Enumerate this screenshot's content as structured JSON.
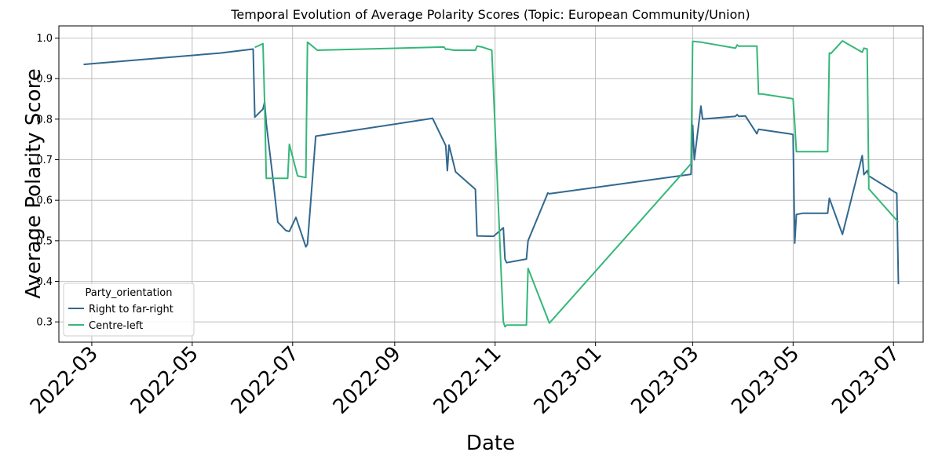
{
  "chart_data": {
    "type": "line",
    "title": "Temporal Evolution of Average Polarity Scores (Topic: European Community/Union)",
    "xlabel": "Date",
    "ylabel": "Average Polarity Score",
    "xlim": [
      "2022-02-09",
      "2023-07-19"
    ],
    "ylim": [
      0.25,
      1.03
    ],
    "xticks": [
      "2022-03-01",
      "2022-05-01",
      "2022-07-01",
      "2022-09-01",
      "2022-11-01",
      "2023-01-01",
      "2023-03-01",
      "2023-05-01",
      "2023-07-01"
    ],
    "xtick_labels": [
      "2022-03",
      "2022-05",
      "2022-07",
      "2022-09",
      "2022-11",
      "2023-01",
      "2023-03",
      "2023-05",
      "2023-07"
    ],
    "yticks": [
      0.3,
      0.4,
      0.5,
      0.6,
      0.7,
      0.8,
      0.9,
      1.0
    ],
    "ytick_labels": [
      "0.3",
      "0.4",
      "0.5",
      "0.6",
      "0.7",
      "0.8",
      "0.9",
      "1.0"
    ],
    "grid": true,
    "legend": {
      "title": "Party_orientation",
      "placement": "lower-left"
    },
    "series": [
      {
        "name": "Right to far-right",
        "color": "#31688e",
        "points": [
          [
            "2022-02-24",
            0.935
          ],
          [
            "2022-05-18",
            0.963
          ],
          [
            "2022-06-07",
            0.973
          ],
          [
            "2022-06-08",
            0.805
          ],
          [
            "2022-06-13",
            0.825
          ],
          [
            "2022-06-14",
            0.842
          ],
          [
            "2022-06-15",
            0.79
          ],
          [
            "2022-06-19",
            0.655
          ],
          [
            "2022-06-22",
            0.546
          ],
          [
            "2022-06-27",
            0.525
          ],
          [
            "2022-06-29",
            0.523
          ],
          [
            "2022-07-03",
            0.558
          ],
          [
            "2022-07-09",
            0.485
          ],
          [
            "2022-07-10",
            0.492
          ],
          [
            "2022-07-15",
            0.758
          ],
          [
            "2022-09-24",
            0.802
          ],
          [
            "2022-10-02",
            0.735
          ],
          [
            "2022-10-03",
            0.673
          ],
          [
            "2022-10-04",
            0.736
          ],
          [
            "2022-10-08",
            0.67
          ],
          [
            "2022-10-20",
            0.627
          ],
          [
            "2022-10-21",
            0.512
          ],
          [
            "2022-10-31",
            0.511
          ],
          [
            "2022-11-06",
            0.532
          ],
          [
            "2022-11-07",
            0.455
          ],
          [
            "2022-11-08",
            0.446
          ],
          [
            "2022-11-20",
            0.455
          ],
          [
            "2022-11-21",
            0.5
          ],
          [
            "2022-12-03",
            0.618
          ],
          [
            "2022-12-04",
            0.616
          ],
          [
            "2023-02-28",
            0.664
          ],
          [
            "2023-03-01",
            0.785
          ],
          [
            "2023-03-02",
            0.7
          ],
          [
            "2023-03-06",
            0.832
          ],
          [
            "2023-03-07",
            0.8
          ],
          [
            "2023-03-27",
            0.807
          ],
          [
            "2023-03-28",
            0.811
          ],
          [
            "2023-03-29",
            0.807
          ],
          [
            "2023-04-02",
            0.808
          ],
          [
            "2023-04-09",
            0.764
          ],
          [
            "2023-04-10",
            0.775
          ],
          [
            "2023-04-30",
            0.763
          ],
          [
            "2023-05-01",
            0.762
          ],
          [
            "2023-05-02",
            0.494
          ],
          [
            "2023-05-03",
            0.565
          ],
          [
            "2023-05-07",
            0.568
          ],
          [
            "2023-05-22",
            0.568
          ],
          [
            "2023-05-23",
            0.605
          ],
          [
            "2023-05-31",
            0.516
          ],
          [
            "2023-06-12",
            0.71
          ],
          [
            "2023-06-13",
            0.663
          ],
          [
            "2023-06-15",
            0.673
          ],
          [
            "2023-06-16",
            0.66
          ],
          [
            "2023-07-03",
            0.617
          ],
          [
            "2023-07-04",
            0.393
          ]
        ]
      },
      {
        "name": "Centre-left",
        "color": "#35b779",
        "points": [
          [
            "2022-06-08",
            0.977
          ],
          [
            "2022-06-13",
            0.986
          ],
          [
            "2022-06-14",
            0.84
          ],
          [
            "2022-06-15",
            0.654
          ],
          [
            "2022-06-28",
            0.654
          ],
          [
            "2022-06-29",
            0.738
          ],
          [
            "2022-07-04",
            0.66
          ],
          [
            "2022-07-09",
            0.656
          ],
          [
            "2022-07-10",
            0.99
          ],
          [
            "2022-07-16",
            0.97
          ],
          [
            "2022-10-01",
            0.978
          ],
          [
            "2022-10-02",
            0.972
          ],
          [
            "2022-10-03",
            0.973
          ],
          [
            "2022-10-07",
            0.97
          ],
          [
            "2022-10-20",
            0.97
          ],
          [
            "2022-10-21",
            0.98
          ],
          [
            "2022-10-24",
            0.978
          ],
          [
            "2022-10-30",
            0.97
          ],
          [
            "2022-11-05",
            0.39
          ],
          [
            "2022-11-06",
            0.3
          ],
          [
            "2022-11-07",
            0.288
          ],
          [
            "2022-11-08",
            0.292
          ],
          [
            "2022-11-20",
            0.292
          ],
          [
            "2022-11-21",
            0.432
          ],
          [
            "2022-12-04",
            0.297
          ],
          [
            "2023-02-28",
            0.69
          ],
          [
            "2023-03-01",
            0.992
          ],
          [
            "2023-03-06",
            0.99
          ],
          [
            "2023-03-27",
            0.975
          ],
          [
            "2023-03-28",
            0.983
          ],
          [
            "2023-03-29",
            0.98
          ],
          [
            "2023-04-09",
            0.98
          ],
          [
            "2023-04-10",
            0.862
          ],
          [
            "2023-04-12",
            0.862
          ],
          [
            "2023-04-30",
            0.851
          ],
          [
            "2023-05-01",
            0.85
          ],
          [
            "2023-05-02",
            0.79
          ],
          [
            "2023-05-03",
            0.72
          ],
          [
            "2023-05-22",
            0.72
          ],
          [
            "2023-05-23",
            0.963
          ],
          [
            "2023-05-24",
            0.962
          ],
          [
            "2023-05-31",
            0.993
          ],
          [
            "2023-06-12",
            0.965
          ],
          [
            "2023-06-13",
            0.975
          ],
          [
            "2023-06-15",
            0.973
          ],
          [
            "2023-06-16",
            0.628
          ],
          [
            "2023-07-04",
            0.546
          ]
        ]
      }
    ]
  }
}
